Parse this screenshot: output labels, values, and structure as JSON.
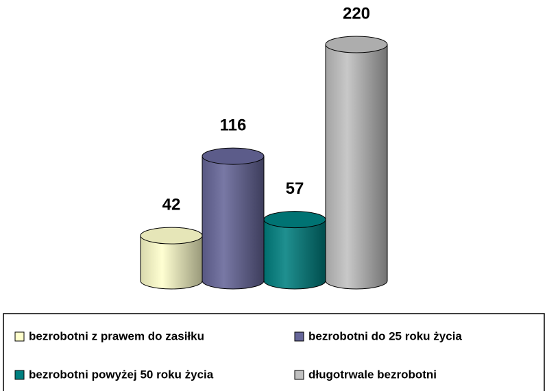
{
  "chart_data": {
    "type": "bar",
    "series": [
      {
        "name": "bezrobotni z prawem do zasiłku",
        "color": "#ffffcc",
        "values": [
          42
        ]
      },
      {
        "name": "bezrobotni do 25 roku życia",
        "color": "#666699",
        "values": [
          116
        ]
      },
      {
        "name": "bezrobotni powyżej 50 roku życia",
        "color": "#008080",
        "values": [
          57
        ]
      },
      {
        "name": "długotrwale bezrobotni",
        "color": "#c0c0c0",
        "values": [
          220
        ]
      }
    ]
  }
}
